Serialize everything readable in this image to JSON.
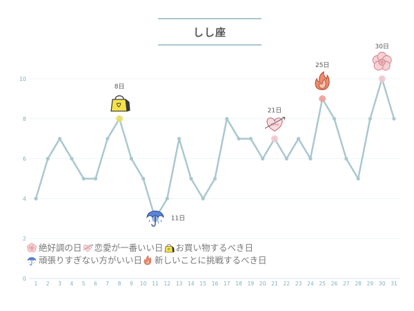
{
  "header": {
    "title": "しし座"
  },
  "chart_data": {
    "type": "line",
    "x": [
      1,
      2,
      3,
      4,
      5,
      6,
      7,
      8,
      9,
      10,
      11,
      12,
      13,
      14,
      15,
      16,
      17,
      18,
      19,
      20,
      21,
      22,
      23,
      24,
      25,
      26,
      27,
      28,
      29,
      30,
      31
    ],
    "series": [
      {
        "values": [
          4,
          6,
          7,
          6,
          5,
          5,
          7,
          8,
          6,
          5,
          3,
          4,
          7,
          5,
          4,
          5,
          8,
          7,
          7,
          6,
          7,
          6,
          7,
          6,
          9,
          8,
          6,
          5,
          8,
          10,
          8
        ]
      }
    ],
    "ylim": [
      0,
      10
    ],
    "yticks": [
      0,
      2,
      4,
      6,
      8,
      10
    ],
    "grid": true,
    "annotations": [
      {
        "day": 8,
        "label": "8日",
        "icon": "shopping-bag-icon",
        "color": "#e8e06a"
      },
      {
        "day": 11,
        "label": "11日",
        "icon": "umbrella-icon",
        "color": "#8fb0e8"
      },
      {
        "day": 21,
        "label": "21日",
        "icon": "heart-icon",
        "color": "#f2c9cf"
      },
      {
        "day": 25,
        "label": "25日",
        "icon": "flame-icon",
        "color": "#f0a29a"
      },
      {
        "day": 30,
        "label": "30日",
        "icon": "flower-icon",
        "color": "#f2c9cf"
      }
    ],
    "colors": {
      "line": "#a9c7cf",
      "grid": "#eef3f4",
      "tick": "#7fb0bd"
    }
  },
  "legend": {
    "rows": [
      [
        {
          "icon": "flower-icon",
          "label": "絶好調の日"
        },
        {
          "icon": "heart-icon",
          "label": "恋愛が一番いい日"
        },
        {
          "icon": "shopping-bag-icon",
          "label": "お買い物するべき日"
        }
      ],
      [
        {
          "icon": "umbrella-icon",
          "label": "頑張りすぎない方がいい日"
        },
        {
          "icon": "flame-icon",
          "label": "新しいことに挑戦するべき日"
        }
      ]
    ]
  }
}
